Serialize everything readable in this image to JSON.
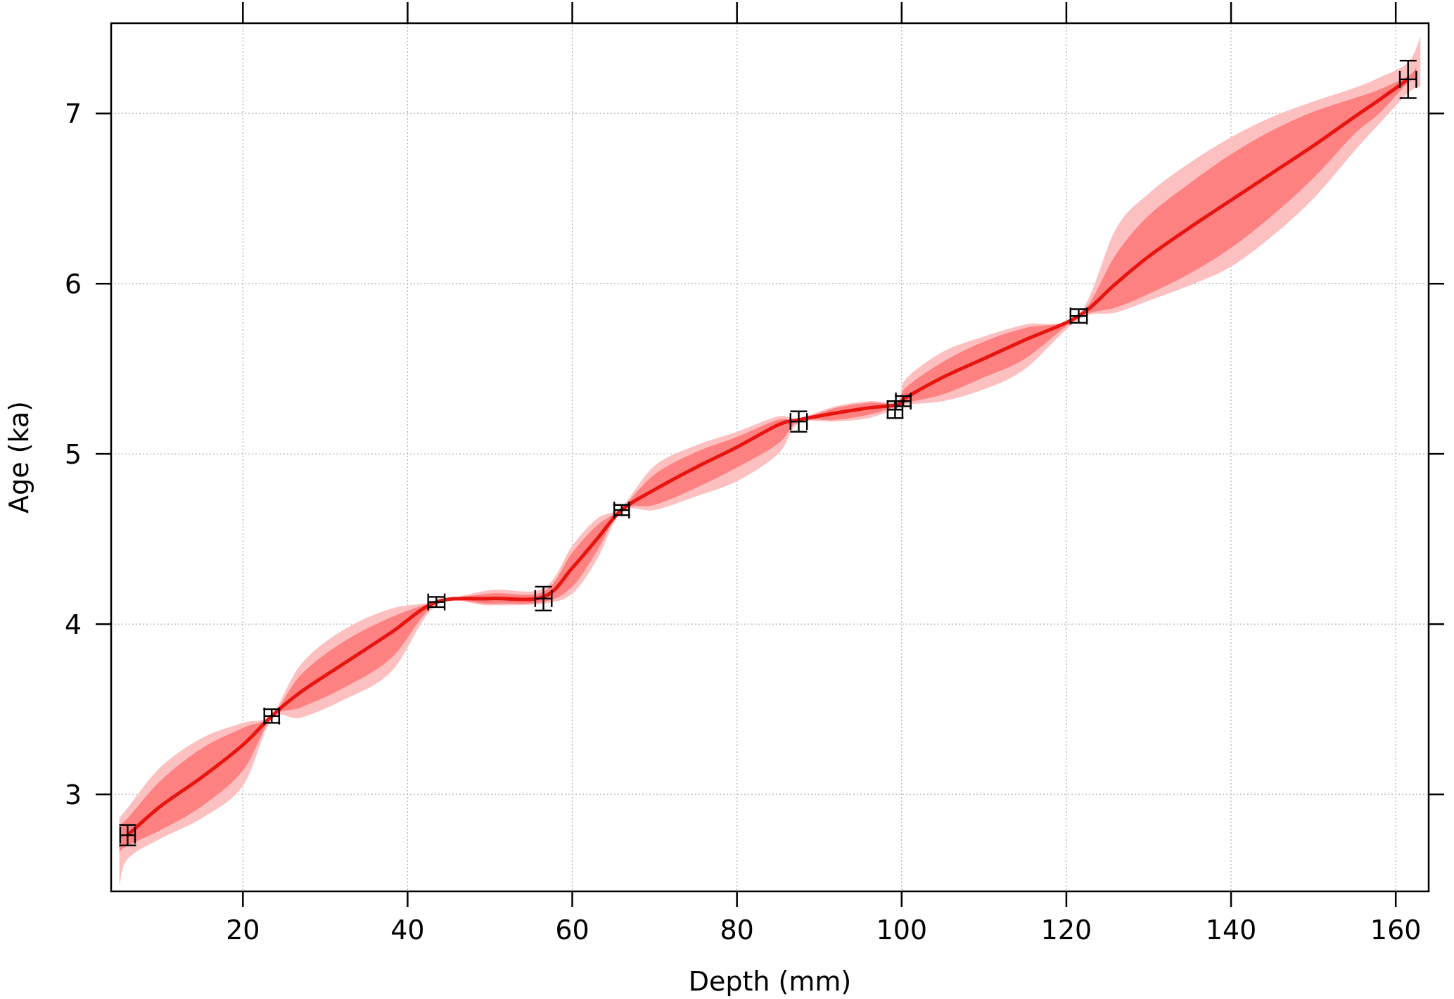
{
  "chart_data": {
    "type": "line",
    "title": "",
    "xlabel": "Depth (mm)",
    "ylabel": "Age (ka)",
    "xlim": [
      4,
      164
    ],
    "ylim": [
      2.43,
      7.53
    ],
    "xticks": [
      20,
      40,
      60,
      80,
      100,
      120,
      140,
      160
    ],
    "yticks": [
      3,
      4,
      5,
      6,
      7
    ],
    "grid": true,
    "colors": {
      "median": "#e8140f",
      "inner_band": "#fd8181",
      "outer_band": "#fdc0c0",
      "points": "#000000",
      "grid": "#b4b4b4"
    },
    "series": [
      {
        "role": "median",
        "x": [
          6,
          10,
          15,
          20,
          23.5,
          27,
          32,
          38,
          43.5,
          50,
          56.5,
          60,
          63,
          66,
          70,
          75,
          80,
          85,
          87.5,
          92,
          96,
          99.5,
          100.5,
          105,
          110,
          115,
          121.5,
          126,
          130,
          135,
          140,
          145,
          150,
          155,
          158,
          161.5
        ],
        "y": [
          2.76,
          2.93,
          3.1,
          3.29,
          3.46,
          3.6,
          3.76,
          3.95,
          4.13,
          4.15,
          4.16,
          4.33,
          4.5,
          4.67,
          4.79,
          4.92,
          5.04,
          5.17,
          5.2,
          5.24,
          5.27,
          5.29,
          5.33,
          5.45,
          5.56,
          5.67,
          5.81,
          6.0,
          6.16,
          6.33,
          6.49,
          6.65,
          6.81,
          6.98,
          7.08,
          7.2
        ]
      },
      {
        "role": "inner_band",
        "x": [
          5,
          6,
          10,
          15,
          20,
          23.5,
          27,
          32,
          38,
          43.5,
          50,
          56.5,
          60,
          63,
          66,
          70,
          75,
          80,
          85,
          87.5,
          92,
          96,
          99.5,
          100.5,
          105,
          110,
          115,
          121.5,
          126,
          130,
          135,
          140,
          145,
          150,
          155,
          158,
          161.5,
          162.5
        ],
        "upper": [
          2.82,
          2.86,
          3.08,
          3.27,
          3.39,
          3.46,
          3.7,
          3.89,
          4.04,
          4.13,
          4.18,
          4.19,
          4.42,
          4.58,
          4.68,
          4.88,
          5.01,
          5.1,
          5.2,
          5.2,
          5.27,
          5.3,
          5.3,
          5.39,
          5.54,
          5.66,
          5.74,
          5.81,
          6.17,
          6.4,
          6.59,
          6.76,
          6.9,
          7.01,
          7.09,
          7.14,
          7.22,
          7.27
        ],
        "lower": [
          2.66,
          2.7,
          2.79,
          2.93,
          3.14,
          3.45,
          3.51,
          3.62,
          3.8,
          4.12,
          4.12,
          4.13,
          4.22,
          4.43,
          4.67,
          4.7,
          4.8,
          4.92,
          5.06,
          5.19,
          5.2,
          5.23,
          5.28,
          5.3,
          5.35,
          5.45,
          5.56,
          5.8,
          5.86,
          5.94,
          6.06,
          6.21,
          6.4,
          6.62,
          6.88,
          7.0,
          7.18,
          7.2
        ]
      },
      {
        "role": "outer_band",
        "x": [
          5,
          6,
          10,
          15,
          20,
          23.5,
          27,
          32,
          38,
          43.5,
          50,
          56.5,
          60,
          63,
          66,
          70,
          75,
          80,
          85,
          87.5,
          92,
          96,
          99.5,
          100.5,
          105,
          110,
          115,
          121.5,
          126,
          130,
          135,
          140,
          145,
          150,
          155,
          158,
          161.5,
          163
        ],
        "upper": [
          2.86,
          2.92,
          3.16,
          3.33,
          3.42,
          3.47,
          3.76,
          3.96,
          4.09,
          4.13,
          4.2,
          4.21,
          4.46,
          4.62,
          4.69,
          4.93,
          5.05,
          5.13,
          5.22,
          5.21,
          5.28,
          5.31,
          5.31,
          5.44,
          5.6,
          5.69,
          5.76,
          5.82,
          6.32,
          6.53,
          6.71,
          6.86,
          6.98,
          7.07,
          7.15,
          7.21,
          7.3,
          7.45
        ],
        "lower": [
          2.46,
          2.62,
          2.74,
          2.86,
          3.05,
          3.44,
          3.45,
          3.55,
          3.72,
          4.11,
          4.11,
          4.12,
          4.18,
          4.38,
          4.66,
          4.67,
          4.75,
          4.84,
          5.0,
          5.18,
          5.19,
          5.21,
          5.27,
          5.29,
          5.31,
          5.38,
          5.5,
          5.79,
          5.83,
          5.9,
          5.99,
          6.1,
          6.28,
          6.5,
          6.78,
          6.94,
          7.12,
          7.16
        ]
      },
      {
        "role": "dated_points",
        "points": [
          {
            "x": 6,
            "y": 2.76,
            "xerr": 0.9,
            "yerr": 0.06
          },
          {
            "x": 23.5,
            "y": 3.46,
            "xerr": 0.9,
            "yerr": 0.04
          },
          {
            "x": 43.5,
            "y": 4.13,
            "xerr": 1.0,
            "yerr": 0.03
          },
          {
            "x": 56.5,
            "y": 4.15,
            "xerr": 1.0,
            "yerr": 0.07
          },
          {
            "x": 66,
            "y": 4.67,
            "xerr": 0.9,
            "yerr": 0.03
          },
          {
            "x": 87.5,
            "y": 5.19,
            "xerr": 1.0,
            "yerr": 0.06
          },
          {
            "x": 99.2,
            "y": 5.26,
            "xerr": 0.9,
            "yerr": 0.05
          },
          {
            "x": 100.2,
            "y": 5.31,
            "xerr": 0.9,
            "yerr": 0.03
          },
          {
            "x": 121.5,
            "y": 5.81,
            "xerr": 1.0,
            "yerr": 0.04
          },
          {
            "x": 161.5,
            "y": 7.2,
            "xerr": 1.0,
            "yerr": 0.11
          }
        ]
      }
    ]
  }
}
